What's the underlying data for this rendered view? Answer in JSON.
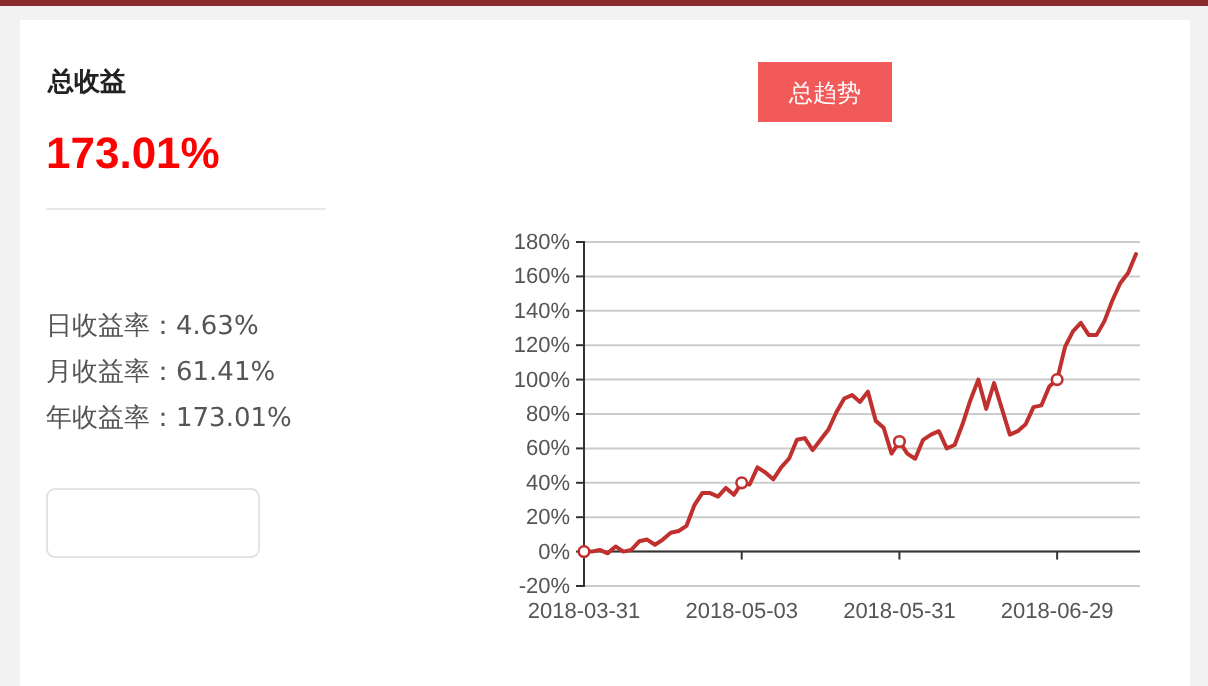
{
  "chart_data": [
    {
      "type": "other",
      "title": "总收益",
      "subtitle": "173.01%",
      "annotations": [
        "日收益率：4.63%",
        "月收益率：61.41%",
        "年收益率：173.01%"
      ]
    },
    {
      "type": "line",
      "title": "总趋势",
      "categories": [
        "2018-03-31",
        null,
        null,
        null,
        null,
        null,
        null,
        null,
        null,
        null,
        null,
        null,
        null,
        null,
        null,
        null,
        null,
        null,
        null,
        null,
        "2018-05-03",
        null,
        null,
        null,
        null,
        null,
        null,
        null,
        null,
        null,
        null,
        null,
        null,
        null,
        null,
        null,
        null,
        null,
        null,
        null,
        "2018-05-31",
        null,
        null,
        null,
        null,
        null,
        null,
        null,
        null,
        null,
        null,
        null,
        null,
        null,
        null,
        null,
        null,
        null,
        null,
        null,
        "2018-06-29",
        null,
        null,
        null,
        null,
        null,
        null,
        null,
        null,
        null,
        null
      ],
      "series": [
        {
          "color": "#c0302e",
          "values": [
            0,
            0,
            1,
            -1,
            3,
            0,
            1,
            6,
            7,
            4,
            7,
            11,
            12,
            15,
            27,
            34,
            34,
            32,
            37,
            33,
            40,
            39,
            49,
            46,
            42,
            49,
            54,
            65,
            66,
            59,
            65,
            71,
            81,
            89,
            91,
            87,
            93,
            76,
            72,
            57,
            64,
            57,
            54,
            65,
            68,
            70,
            60,
            62,
            74,
            88,
            100,
            83,
            98,
            83,
            68,
            70,
            74,
            84,
            85,
            96,
            100,
            119,
            128,
            133,
            126,
            126,
            134,
            146,
            156,
            162,
            173
          ]
        },
        {
          "type": "scatter",
          "color": "#c0302e",
          "marker": "circle",
          "values": [
            0,
            null,
            null,
            null,
            null,
            null,
            null,
            null,
            null,
            null,
            null,
            null,
            null,
            null,
            null,
            null,
            null,
            null,
            null,
            null,
            40,
            null,
            null,
            null,
            null,
            null,
            null,
            null,
            null,
            null,
            null,
            null,
            null,
            null,
            null,
            null,
            null,
            null,
            null,
            null,
            64,
            null,
            null,
            null,
            null,
            null,
            null,
            null,
            null,
            null,
            null,
            null,
            null,
            null,
            null,
            null,
            null,
            null,
            null,
            null,
            100,
            null,
            null,
            null,
            null,
            null,
            null,
            null,
            null,
            null,
            null
          ]
        }
      ],
      "ylim": [
        -20,
        180
      ],
      "yticks": [
        {
          "value": -20,
          "label": "-20%"
        },
        {
          "value": 0,
          "label": "0%"
        },
        {
          "value": 20,
          "label": "20%"
        },
        {
          "value": 40,
          "label": "40%"
        },
        {
          "value": 60,
          "label": "60%"
        },
        {
          "value": 80,
          "label": "80%"
        },
        {
          "value": 100,
          "label": "100%"
        },
        {
          "value": 120,
          "label": "120%"
        },
        {
          "value": 140,
          "label": "140%"
        },
        {
          "value": 160,
          "label": "160%"
        },
        {
          "value": 180,
          "label": "180%"
        }
      ],
      "grid": "y"
    }
  ]
}
